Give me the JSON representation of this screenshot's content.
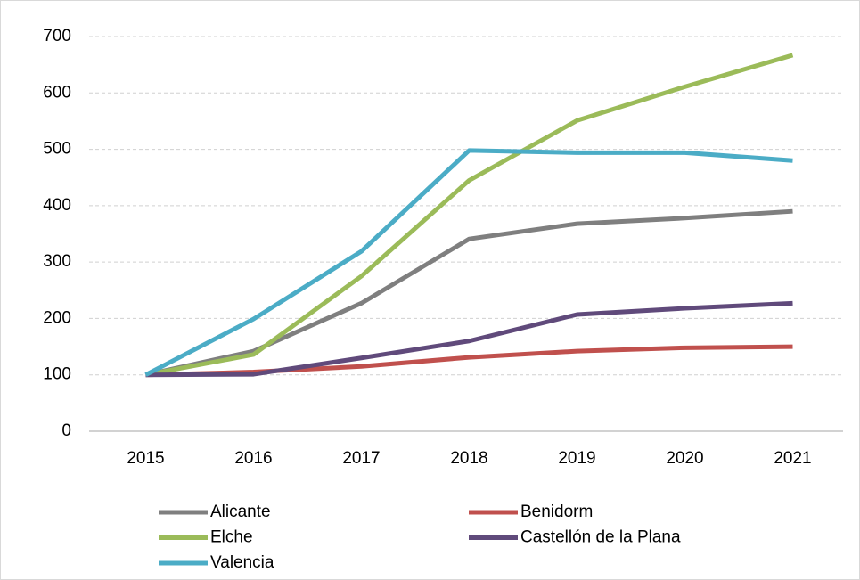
{
  "chart_data": {
    "type": "line",
    "categories": [
      "2015",
      "2016",
      "2017",
      "2018",
      "2019",
      "2020",
      "2021"
    ],
    "series": [
      {
        "name": "Alicante",
        "color": "#7f7f7f",
        "values": [
          100,
          142,
          227,
          341,
          368,
          378,
          390
        ]
      },
      {
        "name": "Benidorm",
        "color": "#c0504d",
        "values": [
          100,
          105,
          115,
          131,
          142,
          148,
          150
        ]
      },
      {
        "name": "Elche",
        "color": "#9bbb59",
        "values": [
          100,
          136,
          275,
          445,
          551,
          611,
          667
        ]
      },
      {
        "name": "Castellón de la Plana",
        "color": "#604a7b",
        "values": [
          100,
          101,
          130,
          160,
          207,
          218,
          227
        ]
      },
      {
        "name": "Valencia",
        "color": "#4bacc6",
        "values": [
          100,
          199,
          319,
          498,
          494,
          494,
          480
        ]
      }
    ],
    "ylim": [
      0,
      700
    ],
    "yticks": [
      0,
      100,
      200,
      300,
      400,
      500,
      600,
      700
    ],
    "grid": true,
    "legend": "bottom"
  }
}
